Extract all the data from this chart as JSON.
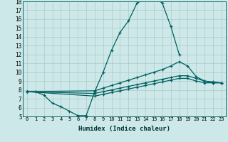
{
  "xlabel": "Humidex (Indice chaleur)",
  "bg_color": "#cde8e8",
  "grid_color": "#b0c8c8",
  "line_color": "#006060",
  "xlim": [
    -0.5,
    23.5
  ],
  "ylim": [
    5,
    18
  ],
  "xticks": [
    0,
    1,
    2,
    3,
    4,
    5,
    6,
    7,
    8,
    9,
    10,
    11,
    12,
    13,
    14,
    15,
    16,
    17,
    18,
    19,
    20,
    21,
    22,
    23
  ],
  "yticks": [
    5,
    6,
    7,
    8,
    9,
    10,
    11,
    12,
    13,
    14,
    15,
    16,
    17,
    18
  ],
  "lines": [
    {
      "x": [
        0,
        1,
        2,
        3,
        4,
        5,
        6,
        7,
        8,
        9,
        10,
        11,
        12,
        13,
        14,
        15,
        16,
        17,
        18
      ],
      "y": [
        7.8,
        7.8,
        7.4,
        6.5,
        6.1,
        5.6,
        5.1,
        5.1,
        7.8,
        10.0,
        12.5,
        14.5,
        15.8,
        17.8,
        18.3,
        18.5,
        17.8,
        15.2,
        12.0
      ]
    },
    {
      "x": [
        0,
        8,
        9,
        10,
        11,
        12,
        13,
        14,
        15,
        16,
        17,
        18,
        19,
        20,
        21,
        22,
        23
      ],
      "y": [
        7.8,
        7.9,
        8.2,
        8.5,
        8.8,
        9.1,
        9.4,
        9.7,
        10.0,
        10.3,
        10.7,
        11.2,
        10.7,
        9.5,
        9.0,
        8.8,
        8.8
      ]
    },
    {
      "x": [
        0,
        8,
        9,
        10,
        11,
        12,
        13,
        14,
        15,
        16,
        17,
        18,
        19,
        20,
        21,
        22,
        23
      ],
      "y": [
        7.8,
        7.6,
        7.8,
        8.0,
        8.2,
        8.4,
        8.6,
        8.8,
        9.0,
        9.2,
        9.4,
        9.6,
        9.6,
        9.3,
        9.0,
        8.9,
        8.8
      ]
    },
    {
      "x": [
        0,
        8,
        9,
        10,
        11,
        12,
        13,
        14,
        15,
        16,
        17,
        18,
        19,
        20,
        21,
        22,
        23
      ],
      "y": [
        7.8,
        7.3,
        7.5,
        7.7,
        7.9,
        8.1,
        8.3,
        8.5,
        8.7,
        8.9,
        9.1,
        9.3,
        9.3,
        9.0,
        8.8,
        8.8,
        8.8
      ]
    }
  ]
}
